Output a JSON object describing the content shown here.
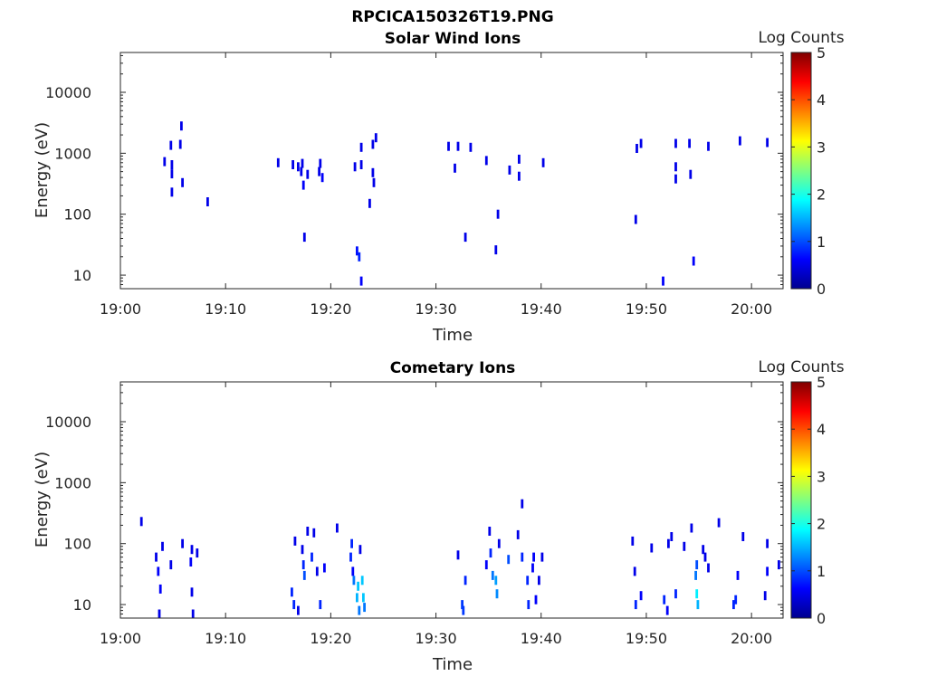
{
  "figure_title": "RPCICA150326T19.PNG",
  "colors": {
    "colormap": [
      "#00008f",
      "#0000ff",
      "#0080ff",
      "#00ffff",
      "#80ff80",
      "#ffff00",
      "#ff8000",
      "#ff0000",
      "#800000"
    ]
  },
  "chart_data": [
    {
      "type": "heatmap",
      "title": "Solar Wind Ions",
      "xlabel": "Time",
      "ylabel": "Energy (eV)",
      "colorbar_label": "Log Counts",
      "colorbar_ticks": [
        "0",
        "1",
        "2",
        "3",
        "4",
        "5"
      ],
      "clim": [
        0,
        5
      ],
      "x_ticks": [
        "19:00",
        "19:10",
        "19:20",
        "19:30",
        "19:40",
        "19:50",
        "20:00"
      ],
      "y_ticks": [
        "10",
        "100",
        "1000",
        "10000"
      ],
      "y_scale": "log",
      "x_range_min": [
        0,
        63
      ],
      "y_range": [
        6,
        45000
      ],
      "cells": [
        [
          4.2,
          730,
          0.5
        ],
        [
          4.8,
          1350,
          0.5
        ],
        [
          4.9,
          650,
          0.5
        ],
        [
          4.9,
          460,
          0.5
        ],
        [
          4.9,
          230,
          0.5
        ],
        [
          5.7,
          1400,
          0.5
        ],
        [
          5.8,
          2800,
          0.5
        ],
        [
          5.9,
          330,
          0.5
        ],
        [
          8.3,
          160,
          0.5
        ],
        [
          15.0,
          700,
          0.5
        ],
        [
          16.4,
          650,
          0.5
        ],
        [
          16.9,
          600,
          0.5
        ],
        [
          17.2,
          500,
          0.5
        ],
        [
          17.3,
          680,
          0.5
        ],
        [
          17.4,
          300,
          0.6
        ],
        [
          17.5,
          42,
          0.5
        ],
        [
          17.8,
          450,
          0.5
        ],
        [
          18.9,
          500,
          0.5
        ],
        [
          19.0,
          680,
          0.5
        ],
        [
          19.2,
          400,
          0.6
        ],
        [
          22.3,
          600,
          0.5
        ],
        [
          22.5,
          25,
          0.7
        ],
        [
          22.7,
          20,
          0.8
        ],
        [
          22.9,
          8,
          0.6
        ],
        [
          22.9,
          650,
          0.5
        ],
        [
          22.9,
          1250,
          0.5
        ],
        [
          23.7,
          150,
          0.5
        ],
        [
          24.0,
          480,
          0.5
        ],
        [
          24.1,
          330,
          0.5
        ],
        [
          24.0,
          1400,
          0.5
        ],
        [
          24.3,
          1800,
          0.5
        ],
        [
          31.2,
          1300,
          0.5
        ],
        [
          31.8,
          570,
          0.5
        ],
        [
          32.1,
          1300,
          0.5
        ],
        [
          32.8,
          42,
          0.5
        ],
        [
          33.3,
          1250,
          0.5
        ],
        [
          34.8,
          760,
          0.5
        ],
        [
          35.7,
          26,
          0.5
        ],
        [
          35.9,
          100,
          0.5
        ],
        [
          37.0,
          530,
          0.5
        ],
        [
          37.9,
          420,
          0.5
        ],
        [
          37.9,
          800,
          0.5
        ],
        [
          40.2,
          700,
          0.5
        ],
        [
          49.0,
          82,
          0.5
        ],
        [
          49.1,
          1200,
          0.5
        ],
        [
          49.5,
          1450,
          0.5
        ],
        [
          51.6,
          8,
          0.6
        ],
        [
          52.8,
          1450,
          0.5
        ],
        [
          52.8,
          600,
          0.5
        ],
        [
          52.8,
          380,
          0.5
        ],
        [
          54.1,
          1450,
          0.5
        ],
        [
          54.2,
          450,
          0.5
        ],
        [
          54.5,
          17,
          0.6
        ],
        [
          55.9,
          1300,
          0.5
        ],
        [
          58.9,
          1600,
          0.5
        ],
        [
          61.5,
          1500,
          0.5
        ]
      ]
    },
    {
      "type": "heatmap",
      "title": "Cometary Ions",
      "xlabel": "Time",
      "ylabel": "Energy (eV)",
      "colorbar_label": "Log Counts",
      "colorbar_ticks": [
        "0",
        "1",
        "2",
        "3",
        "4",
        "5"
      ],
      "clim": [
        0,
        5
      ],
      "x_ticks": [
        "19:00",
        "19:10",
        "19:20",
        "19:30",
        "19:40",
        "19:50",
        "20:00"
      ],
      "y_ticks": [
        "10",
        "100",
        "1000",
        "10000"
      ],
      "y_scale": "log",
      "x_range_min": [
        0,
        63
      ],
      "y_range": [
        6,
        45000
      ],
      "cells": [
        [
          2.0,
          230,
          0.5
        ],
        [
          3.4,
          60,
          0.5
        ],
        [
          3.6,
          35,
          0.6
        ],
        [
          3.8,
          18,
          0.6
        ],
        [
          3.7,
          7,
          0.5
        ],
        [
          4.0,
          90,
          0.5
        ],
        [
          4.8,
          45,
          0.5
        ],
        [
          5.9,
          100,
          0.5
        ],
        [
          6.7,
          50,
          0.6
        ],
        [
          6.8,
          80,
          0.5
        ],
        [
          6.8,
          16,
          0.5
        ],
        [
          6.9,
          7,
          0.5
        ],
        [
          7.3,
          70,
          0.5
        ],
        [
          16.3,
          16,
          0.8
        ],
        [
          16.5,
          10,
          0.8
        ],
        [
          16.6,
          110,
          0.5
        ],
        [
          16.9,
          8,
          0.5
        ],
        [
          17.3,
          80,
          0.5
        ],
        [
          17.4,
          45,
          0.8
        ],
        [
          17.5,
          30,
          1.0
        ],
        [
          17.8,
          160,
          0.5
        ],
        [
          18.2,
          60,
          0.8
        ],
        [
          18.4,
          150,
          0.5
        ],
        [
          18.7,
          35,
          0.5
        ],
        [
          19.0,
          10,
          0.8
        ],
        [
          19.4,
          40,
          0.6
        ],
        [
          20.6,
          180,
          0.5
        ],
        [
          21.9,
          60,
          0.8
        ],
        [
          22.0,
          100,
          0.8
        ],
        [
          22.1,
          35,
          0.6
        ],
        [
          22.2,
          25,
          1.2
        ],
        [
          22.5,
          13,
          1.5
        ],
        [
          22.6,
          20,
          1.6
        ],
        [
          22.7,
          8,
          1.2
        ],
        [
          22.8,
          80,
          0.5
        ],
        [
          23.0,
          25,
          1.6
        ],
        [
          23.1,
          13,
          1.6
        ],
        [
          23.2,
          9,
          1.2
        ],
        [
          32.1,
          65,
          0.5
        ],
        [
          32.5,
          10,
          0.9
        ],
        [
          32.6,
          8,
          0.9
        ],
        [
          32.8,
          25,
          0.8
        ],
        [
          34.8,
          45,
          0.6
        ],
        [
          35.1,
          160,
          0.5
        ],
        [
          35.2,
          70,
          0.8
        ],
        [
          35.4,
          30,
          1.2
        ],
        [
          35.7,
          25,
          1.4
        ],
        [
          35.8,
          15,
          1.3
        ],
        [
          36.0,
          100,
          0.5
        ],
        [
          36.9,
          55,
          1.0
        ],
        [
          37.8,
          140,
          0.5
        ],
        [
          38.2,
          450,
          0.5
        ],
        [
          38.2,
          60,
          0.8
        ],
        [
          38.7,
          25,
          0.8
        ],
        [
          38.8,
          10,
          0.8
        ],
        [
          39.2,
          40,
          0.6
        ],
        [
          39.3,
          60,
          0.6
        ],
        [
          39.5,
          12,
          0.6
        ],
        [
          39.8,
          25,
          0.5
        ],
        [
          40.1,
          60,
          0.5
        ],
        [
          48.7,
          110,
          0.5
        ],
        [
          48.9,
          35,
          0.5
        ],
        [
          49.0,
          10,
          0.8
        ],
        [
          49.5,
          14,
          0.6
        ],
        [
          50.5,
          85,
          0.5
        ],
        [
          51.7,
          12,
          0.8
        ],
        [
          52.0,
          8,
          0.6
        ],
        [
          52.1,
          100,
          0.5
        ],
        [
          52.4,
          130,
          0.5
        ],
        [
          52.8,
          15,
          0.8
        ],
        [
          53.6,
          90,
          0.5
        ],
        [
          54.3,
          180,
          0.5
        ],
        [
          54.7,
          30,
          1.2
        ],
        [
          54.8,
          15,
          1.8
        ],
        [
          54.9,
          10,
          1.5
        ],
        [
          54.8,
          45,
          1.0
        ],
        [
          55.4,
          80,
          0.5
        ],
        [
          55.6,
          60,
          0.5
        ],
        [
          55.9,
          40,
          0.5
        ],
        [
          56.9,
          220,
          0.5
        ],
        [
          58.3,
          10,
          0.8
        ],
        [
          58.5,
          12,
          0.8
        ],
        [
          58.7,
          30,
          0.6
        ],
        [
          59.2,
          130,
          0.5
        ],
        [
          61.3,
          14,
          0.5
        ],
        [
          61.5,
          35,
          0.6
        ],
        [
          61.5,
          100,
          0.5
        ],
        [
          62.6,
          45,
          0.5
        ]
      ]
    }
  ]
}
